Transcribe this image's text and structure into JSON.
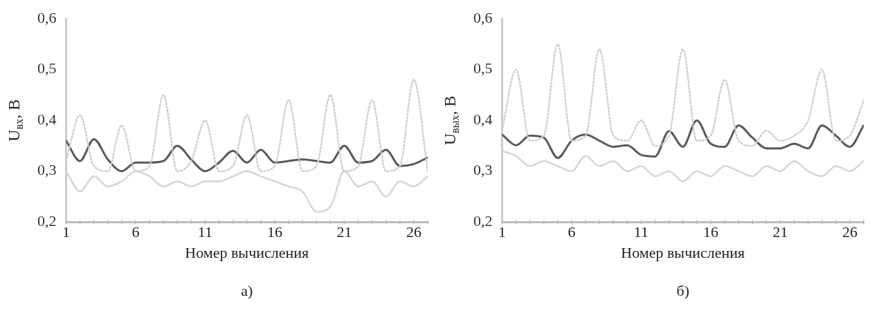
{
  "chart_data": [
    {
      "type": "line",
      "xlabel": "Номер вычисления",
      "ylabel": "U$_{вх}$, В",
      "annotations": [
        "а)"
      ],
      "xlim": [
        1,
        27
      ],
      "xticks": [
        1,
        6,
        11,
        16,
        21,
        26
      ],
      "ylim": [
        0.2,
        0.6
      ],
      "yticks": [
        {
          "value": 0.2,
          "label": "0,2"
        },
        {
          "value": 0.3,
          "label": "0,3"
        },
        {
          "value": 0.4,
          "label": "0,4"
        },
        {
          "value": 0.5,
          "label": "0,5"
        },
        {
          "value": 0.6,
          "label": "0,6"
        }
      ],
      "grid": false,
      "legend": false,
      "marker": "none",
      "x": [
        1,
        2,
        3,
        4,
        5,
        6,
        7,
        8,
        9,
        10,
        11,
        12,
        13,
        14,
        15,
        16,
        17,
        18,
        19,
        20,
        21,
        22,
        23,
        24,
        25,
        26,
        27
      ],
      "series": [
        {
          "color": "#cfcfcf",
          "line_style": "dotted",
          "values": [
            0.32,
            0.41,
            0.31,
            0.3,
            0.39,
            0.3,
            0.31,
            0.45,
            0.3,
            0.32,
            0.4,
            0.3,
            0.31,
            0.41,
            0.3,
            0.31,
            0.44,
            0.3,
            0.31,
            0.45,
            0.3,
            0.31,
            0.44,
            0.3,
            0.31,
            0.48,
            0.3
          ]
        },
        {
          "color": "#d6d6d6",
          "line_style": "solid",
          "values": [
            0.3,
            0.26,
            0.29,
            0.27,
            0.28,
            0.3,
            0.29,
            0.27,
            0.28,
            0.27,
            0.28,
            0.28,
            0.29,
            0.3,
            0.29,
            0.28,
            0.27,
            0.26,
            0.22,
            0.23,
            0.3,
            0.27,
            0.28,
            0.25,
            0.28,
            0.27,
            0.29
          ]
        },
        {
          "color": "#595959",
          "line_style": "solid",
          "values": [
            0.36,
            0.32,
            0.363,
            0.323,
            0.3,
            0.317,
            0.317,
            0.32,
            0.35,
            0.323,
            0.3,
            0.317,
            0.34,
            0.317,
            0.342,
            0.317,
            0.32,
            0.323,
            0.32,
            0.317,
            0.35,
            0.317,
            0.32,
            0.342,
            0.31,
            0.314,
            0.327
          ]
        }
      ]
    },
    {
      "type": "line",
      "xlabel": "Номер вычисления",
      "ylabel": "U$_{вых}$, В",
      "annotations": [
        "б)"
      ],
      "xlim": [
        1,
        27
      ],
      "xticks": [
        1,
        6,
        11,
        16,
        21,
        26
      ],
      "ylim": [
        0.2,
        0.6
      ],
      "yticks": [
        {
          "value": 0.2,
          "label": "0,2"
        },
        {
          "value": 0.3,
          "label": "0,3"
        },
        {
          "value": 0.4,
          "label": "0,4"
        },
        {
          "value": 0.5,
          "label": "0,5"
        },
        {
          "value": 0.6,
          "label": "0,6"
        }
      ],
      "grid": false,
      "legend": false,
      "marker": "none",
      "x": [
        1,
        2,
        3,
        4,
        5,
        6,
        7,
        8,
        9,
        10,
        11,
        12,
        13,
        14,
        15,
        16,
        17,
        18,
        19,
        20,
        21,
        22,
        23,
        24,
        25,
        26,
        27
      ],
      "series": [
        {
          "color": "#cfcfcf",
          "line_style": "dotted",
          "values": [
            0.38,
            0.5,
            0.36,
            0.37,
            0.55,
            0.36,
            0.37,
            0.54,
            0.37,
            0.36,
            0.4,
            0.35,
            0.37,
            0.54,
            0.36,
            0.37,
            0.48,
            0.36,
            0.35,
            0.38,
            0.36,
            0.37,
            0.4,
            0.5,
            0.36,
            0.37,
            0.44
          ]
        },
        {
          "color": "#d6d6d6",
          "line_style": "solid",
          "values": [
            0.34,
            0.33,
            0.31,
            0.32,
            0.31,
            0.3,
            0.33,
            0.31,
            0.32,
            0.3,
            0.31,
            0.29,
            0.3,
            0.28,
            0.3,
            0.29,
            0.31,
            0.3,
            0.29,
            0.31,
            0.3,
            0.32,
            0.3,
            0.29,
            0.31,
            0.3,
            0.32
          ]
        },
        {
          "color": "#595959",
          "line_style": "solid",
          "values": [
            0.372,
            0.351,
            0.37,
            0.366,
            0.326,
            0.36,
            0.372,
            0.36,
            0.348,
            0.351,
            0.332,
            0.329,
            0.379,
            0.348,
            0.4,
            0.354,
            0.348,
            0.39,
            0.366,
            0.345,
            0.345,
            0.354,
            0.345,
            0.39,
            0.37,
            0.348,
            0.39
          ]
        }
      ]
    }
  ]
}
